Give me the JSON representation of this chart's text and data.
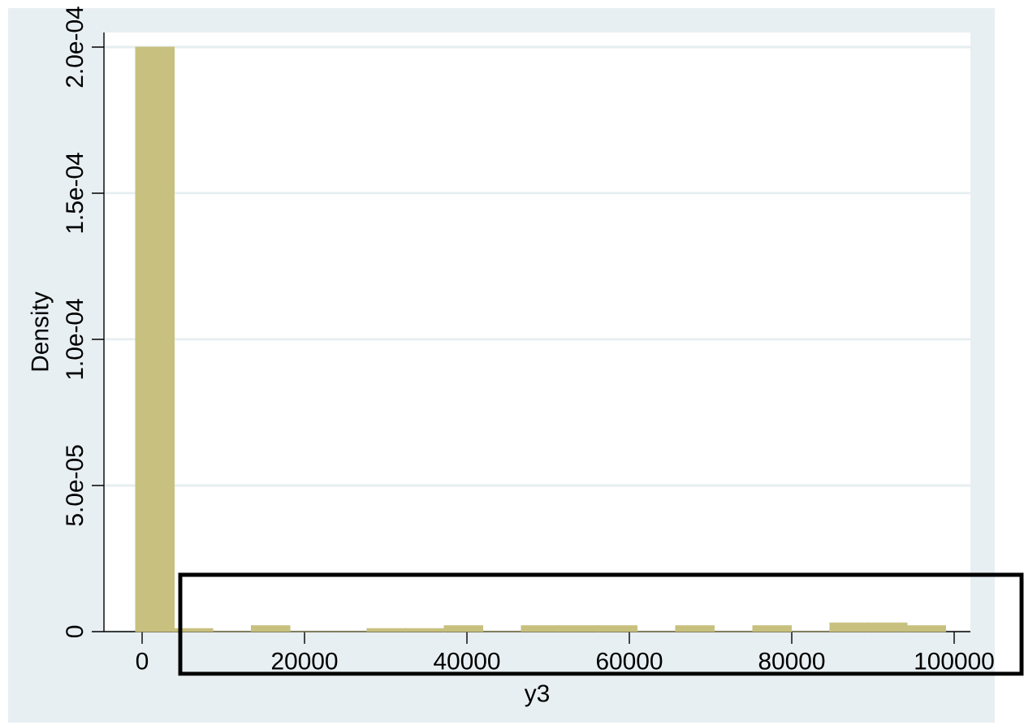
{
  "chart_data": {
    "type": "histogram",
    "xlabel": "y3",
    "ylabel": "Density",
    "bins": [
      -800,
      3950,
      8700,
      13450,
      18200,
      22950,
      27700,
      32450,
      37200,
      41950,
      46700,
      51450,
      56200,
      60950,
      65700,
      70450,
      75200,
      79950,
      84700,
      89450,
      94200,
      98950
    ],
    "values": [
      0.0002,
      1e-06,
      0,
      2e-06,
      0,
      0,
      1e-06,
      1e-06,
      2e-06,
      0,
      2e-06,
      2e-06,
      2e-06,
      0,
      2e-06,
      0,
      2e-06,
      0,
      3e-06,
      3e-06,
      2e-06
    ],
    "color": "#c8c07e",
    "xlim": [
      -4700,
      102000
    ],
    "ylim": [
      0,
      0.000205
    ],
    "xticks": [
      0,
      20000,
      40000,
      60000,
      80000,
      100000
    ],
    "yticks": [
      {
        "value": 0,
        "label": "0"
      },
      {
        "value": 5e-05,
        "label": "5.0e-05"
      },
      {
        "value": 0.0001,
        "label": "1.0e-04"
      },
      {
        "value": 0.00015,
        "label": "1.5e-04"
      },
      {
        "value": 0.0002,
        "label": "2.0e-04"
      }
    ],
    "grid": "y"
  }
}
